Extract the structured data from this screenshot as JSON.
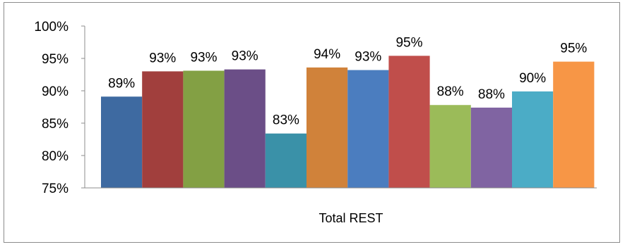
{
  "chart_data": {
    "type": "bar",
    "categories": [
      "Total REST"
    ],
    "series": [
      {
        "values": [
          0.891
        ],
        "label": "89%",
        "color": "#3E6AA1"
      },
      {
        "values": [
          0.93
        ],
        "label": "93%",
        "color": "#A13F3D"
      },
      {
        "values": [
          0.931
        ],
        "label": "93%",
        "color": "#83A044"
      },
      {
        "values": [
          0.933
        ],
        "label": "93%",
        "color": "#6B4E87"
      },
      {
        "values": [
          0.834
        ],
        "label": "83%",
        "color": "#3A91A8"
      },
      {
        "values": [
          0.936
        ],
        "label": "94%",
        "color": "#D0823A"
      },
      {
        "values": [
          0.932
        ],
        "label": "93%",
        "color": "#4B7DBF"
      },
      {
        "values": [
          0.954
        ],
        "label": "95%",
        "color": "#C04E4B"
      },
      {
        "values": [
          0.878
        ],
        "label": "88%",
        "color": "#9BBB59"
      },
      {
        "values": [
          0.874
        ],
        "label": "88%",
        "color": "#8064A2"
      },
      {
        "values": [
          0.899
        ],
        "label": "90%",
        "color": "#4BACC6"
      },
      {
        "values": [
          0.945
        ],
        "label": "95%",
        "color": "#F79646"
      }
    ],
    "ylim": [
      0.75,
      1.0
    ],
    "yticks": [
      {
        "value": 1.0,
        "label": "100%"
      },
      {
        "value": 0.95,
        "label": "95%"
      },
      {
        "value": 0.9,
        "label": "90%"
      },
      {
        "value": 0.85,
        "label": "85%"
      },
      {
        "value": 0.8,
        "label": "80%"
      },
      {
        "value": 0.75,
        "label": "75%"
      }
    ],
    "grid": false,
    "legend": "none",
    "axis_color": "#8c8c8c"
  }
}
